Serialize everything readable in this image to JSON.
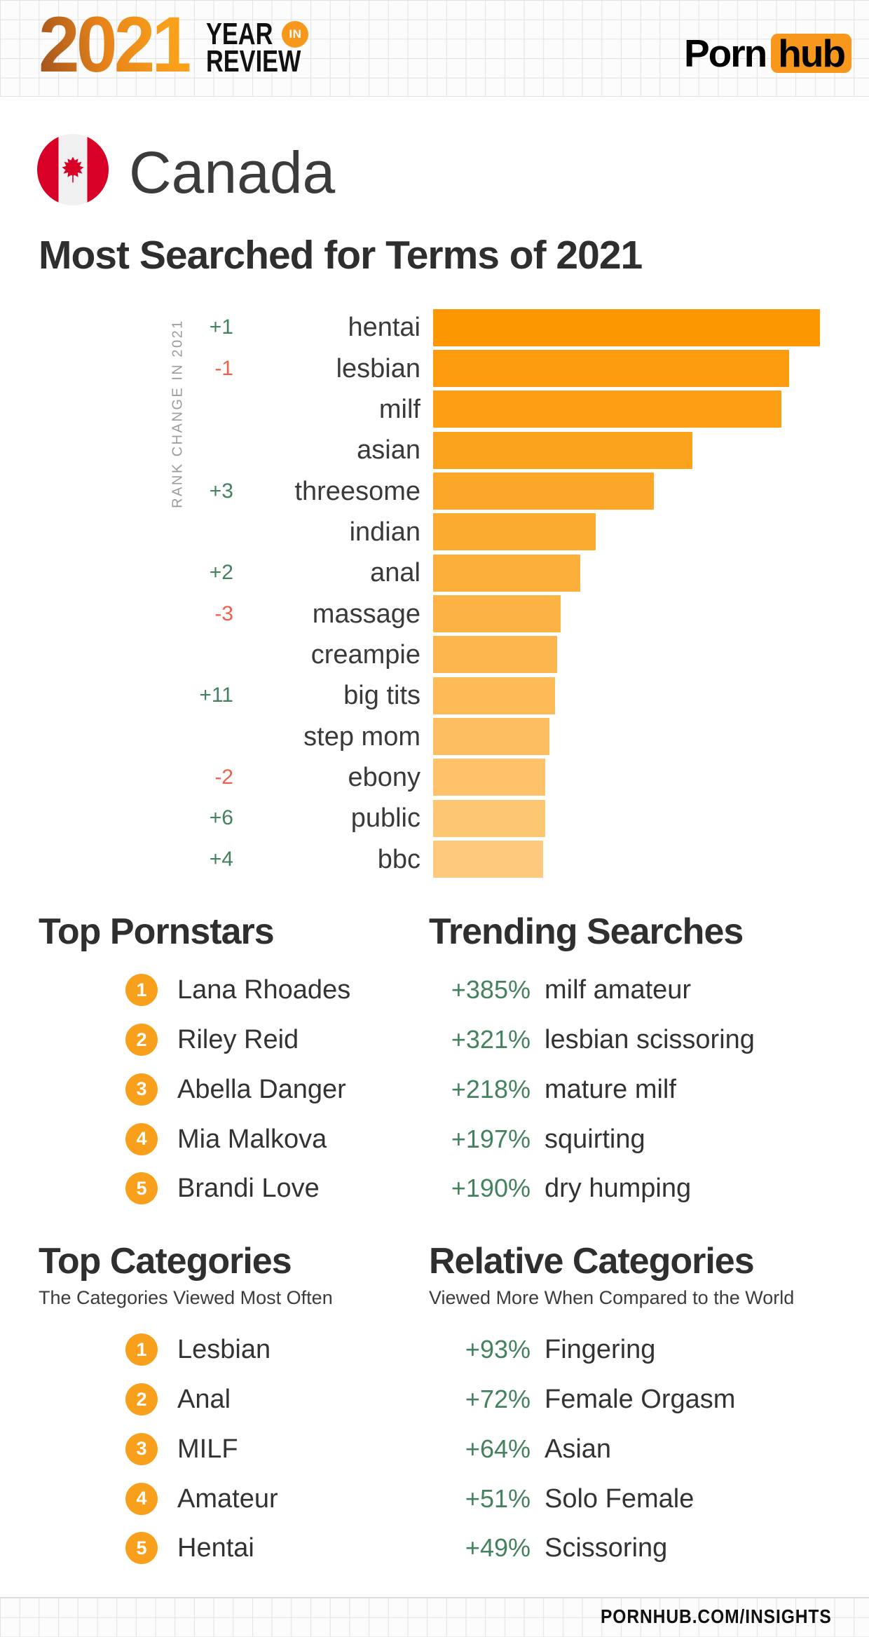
{
  "header": {
    "year_logo": "2021",
    "year_word": "YEAR",
    "in_word": "IN",
    "review_word": "REVIEW",
    "brand_porn": "Porn",
    "brand_hub": "hub"
  },
  "country": {
    "name": "Canada",
    "flag": "canada-flag"
  },
  "page_title": "Most Searched for Terms of 2021",
  "chart_data": {
    "type": "bar",
    "orientation": "horizontal",
    "title": "Most Searched for Terms of 2021",
    "axis_label": "RANK CHANGE IN 2021",
    "categories": [
      "hentai",
      "lesbian",
      "milf",
      "asian",
      "threesome",
      "indian",
      "anal",
      "massage",
      "creampie",
      "big tits",
      "step mom",
      "ebony",
      "public",
      "bbc"
    ],
    "values_relative_pct": [
      100,
      92,
      90,
      67,
      57,
      42,
      38,
      33,
      32,
      31.5,
      30,
      29,
      29,
      28.5
    ],
    "rank_changes": [
      "+1",
      "-1",
      "",
      "",
      "+3",
      "",
      "+2",
      "-3",
      "",
      "+11",
      "",
      "-2",
      "+6",
      "+4"
    ],
    "legend": "none",
    "grid": "off",
    "bar_color_top": "#fc9701",
    "bar_color_bottom": "#fdca7d"
  },
  "sections": {
    "top_pornstars": {
      "title": "Top Pornstars",
      "items": [
        "Lana Rhoades",
        "Riley Reid",
        "Abella Danger",
        "Mia Malkova",
        "Brandi Love"
      ]
    },
    "trending_searches": {
      "title": "Trending Searches",
      "items": [
        {
          "pct": "+385%",
          "term": "milf amateur"
        },
        {
          "pct": "+321%",
          "term": "lesbian scissoring"
        },
        {
          "pct": "+218%",
          "term": "mature milf"
        },
        {
          "pct": "+197%",
          "term": "squirting"
        },
        {
          "pct": "+190%",
          "term": "dry humping"
        }
      ]
    },
    "top_categories": {
      "title": "Top Categories",
      "subtitle": "The Categories Viewed Most Often",
      "items": [
        "Lesbian",
        "Anal",
        "MILF",
        "Amateur",
        "Hentai"
      ]
    },
    "relative_categories": {
      "title": "Relative Categories",
      "subtitle": "Viewed More When Compared to the World",
      "items": [
        {
          "pct": "+93%",
          "term": "Fingering"
        },
        {
          "pct": "+72%",
          "term": "Female Orgasm"
        },
        {
          "pct": "+64%",
          "term": "Asian"
        },
        {
          "pct": "+51%",
          "term": "Solo Female"
        },
        {
          "pct": "+49%",
          "term": "Scissoring"
        }
      ]
    }
  },
  "footer": {
    "url": "PORNHUB.COM/INSIGHTS"
  },
  "colors": {
    "accent_orange": "#f7981d",
    "badge_orange": "#f8a01c",
    "positive_green": "#44815e",
    "negative_red": "#ed604b",
    "flag_red": "#d80027",
    "flag_white": "#f0f0f0",
    "grid_line": "#e2e2e2"
  }
}
